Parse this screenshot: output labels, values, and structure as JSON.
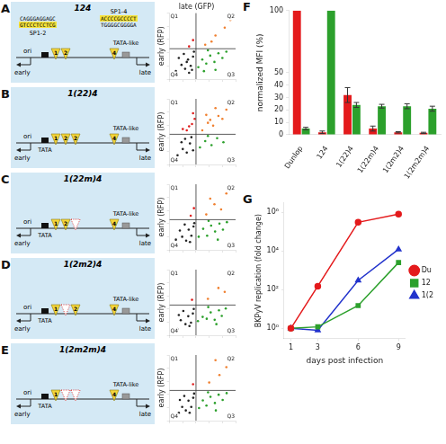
{
  "figure": {
    "diagrams": [
      {
        "panel": "A",
        "title": "124",
        "sequences": [
          {
            "top": "CAGGGAGGAGC",
            "bottom": "GTCCCTCCTCG",
            "name": "SP1-2"
          },
          {
            "top": "ACCCCGCCCCT",
            "bottom": "TGGGGCGGGGA",
            "name": "SP1-4"
          }
        ],
        "sites": [
          {
            "label": "1"
          },
          {
            "label": "2"
          },
          {
            "label": "4"
          }
        ],
        "ori": "ori",
        "early": "early",
        "late": "late",
        "tata_like": "TATA-like"
      },
      {
        "panel": "B",
        "title": "1(22)4",
        "sites": [
          {
            "label": "1"
          },
          {
            "label": "2"
          },
          {
            "label": "2"
          },
          {
            "label": "4"
          }
        ],
        "ori": "ori",
        "early": "early",
        "late": "late",
        "tata": "TATA",
        "tata_like": "TATA-like"
      },
      {
        "panel": "C",
        "title": "1(22m)4",
        "sites": [
          {
            "label": "1"
          },
          {
            "label": "2"
          },
          {
            "mutated": true
          },
          {
            "label": "4"
          }
        ],
        "ori": "ori",
        "early": "early",
        "late": "late",
        "tata": "TATA",
        "tata_like": "TATA-like"
      },
      {
        "panel": "D",
        "title": "1(2m2)4",
        "sites": [
          {
            "label": "1"
          },
          {
            "mutated": true
          },
          {
            "label": "2"
          },
          {
            "label": "4"
          }
        ],
        "ori": "ori",
        "early": "early",
        "late": "late",
        "tata": "TATA",
        "tata_like": "TATA-like"
      },
      {
        "panel": "E",
        "title": "1(2m2m)4",
        "sites": [
          {
            "label": "1"
          },
          {
            "mutated": true
          },
          {
            "mutated": true
          },
          {
            "label": "4"
          }
        ],
        "ori": "ori",
        "early": "early",
        "late": "late",
        "tata": "TATA",
        "tata_like": "TATA-like"
      }
    ]
  },
  "chart_data": [
    {
      "type": "scatter",
      "x_label": "late (GFP)",
      "y_label": "early (RFP)",
      "log": true,
      "tick_labels": false,
      "xlim": [
        1,
        100000
      ],
      "ylim": [
        1,
        100000
      ],
      "xticks": [
        1,
        10,
        100,
        1000,
        10000,
        100000
      ],
      "yticks": [
        1,
        10,
        100,
        1000,
        10000,
        100000
      ],
      "gates": {
        "x": 100,
        "y": 200
      },
      "quadrants": [
        "Q1",
        "Q2",
        "Q3",
        "Q4"
      ],
      "series": [
        {
          "color": "#222222",
          "points": [
            [
              3,
              4
            ],
            [
              8,
              12
            ],
            [
              15,
              6
            ],
            [
              25,
              30
            ],
            [
              40,
              10
            ],
            [
              60,
              50
            ],
            [
              12,
              80
            ],
            [
              5,
              40
            ],
            [
              30,
              3
            ],
            [
              70,
              120
            ],
            [
              20,
              20
            ],
            [
              50,
              5
            ]
          ]
        },
        {
          "color": "#2ca02c",
          "points": [
            [
              150,
              8
            ],
            [
              300,
              30
            ],
            [
              600,
              15
            ],
            [
              1200,
              60
            ],
            [
              2500,
              20
            ],
            [
              5000,
              90
            ],
            [
              10000,
              40
            ],
            [
              20000,
              120
            ],
            [
              800,
              150
            ],
            [
              400,
              4
            ],
            [
              3000,
              5
            ]
          ]
        },
        {
          "color": "#f08030",
          "points": [
            [
              500,
              400
            ],
            [
              3000,
              2000
            ],
            [
              15000,
              8000
            ],
            [
              40000,
              30000
            ],
            [
              1500,
              700
            ]
          ]
        },
        {
          "color": "#e02020",
          "points": [
            [
              30,
              300
            ],
            [
              60,
              900
            ]
          ]
        }
      ]
    },
    {
      "type": "scatter",
      "y_label": "early (RFP)",
      "log": true,
      "tick_labels": false,
      "xlim": [
        1,
        100000
      ],
      "ylim": [
        1,
        100000
      ],
      "xticks": [
        1,
        10,
        100,
        1000,
        10000,
        100000
      ],
      "yticks": [
        1,
        10,
        100,
        1000,
        10000,
        100000
      ],
      "gates": {
        "x": 100,
        "y": 200
      },
      "quadrants": [
        "Q1",
        "Q2",
        "Q3",
        "Q4"
      ],
      "series": [
        {
          "color": "#222222",
          "points": [
            [
              4,
              5
            ],
            [
              10,
              15
            ],
            [
              20,
              8
            ],
            [
              35,
              40
            ],
            [
              60,
              12
            ],
            [
              15,
              90
            ],
            [
              45,
              120
            ],
            [
              8,
              50
            ]
          ]
        },
        {
          "color": "#2ca02c",
          "points": [
            [
              200,
              20
            ],
            [
              500,
              60
            ],
            [
              1500,
              30
            ],
            [
              4000,
              100
            ],
            [
              12000,
              50
            ],
            [
              800,
              150
            ]
          ]
        },
        {
          "color": "#f08030",
          "points": [
            [
              300,
              400
            ],
            [
              800,
              1500
            ],
            [
              2000,
              900
            ],
            [
              5000,
              5000
            ],
            [
              10000,
              3000
            ],
            [
              20000,
              15000
            ],
            [
              3000,
              20000
            ],
            [
              600,
              6000
            ],
            [
              1200,
              2500
            ],
            [
              40000,
              40000
            ]
          ]
        },
        {
          "color": "#e02020",
          "points": [
            [
              20,
              400
            ],
            [
              50,
              1200
            ],
            [
              80,
              3000
            ],
            [
              30,
              800
            ],
            [
              60,
              8000
            ],
            [
              10,
              500
            ]
          ]
        }
      ]
    },
    {
      "type": "scatter",
      "y_label": "early (RFP)",
      "log": true,
      "tick_labels": false,
      "xlim": [
        1,
        100000
      ],
      "ylim": [
        1,
        100000
      ],
      "xticks": [
        1,
        10,
        100,
        1000,
        10000,
        100000
      ],
      "yticks": [
        1,
        10,
        100,
        1000,
        10000,
        100000
      ],
      "gates": {
        "x": 100,
        "y": 200
      },
      "quadrants": [
        "Q1",
        "Q2",
        "Q3",
        "Q4"
      ],
      "series": [
        {
          "color": "#222222",
          "points": [
            [
              3,
              6
            ],
            [
              9,
              10
            ],
            [
              18,
              5
            ],
            [
              28,
              35
            ],
            [
              45,
              12
            ],
            [
              65,
              60
            ],
            [
              14,
              85
            ],
            [
              6,
              30
            ],
            [
              35,
              4
            ],
            [
              75,
              110
            ]
          ]
        },
        {
          "color": "#2ca02c",
          "points": [
            [
              160,
              10
            ],
            [
              350,
              40
            ],
            [
              700,
              12
            ],
            [
              1400,
              70
            ],
            [
              2800,
              25
            ],
            [
              6000,
              100
            ],
            [
              11000,
              35
            ],
            [
              22000,
              130
            ],
            [
              900,
              160
            ],
            [
              4500,
              6
            ]
          ]
        },
        {
          "color": "#f08030",
          "points": [
            [
              600,
              500
            ],
            [
              2500,
              3000
            ],
            [
              8000,
              1200
            ],
            [
              20000,
              20000
            ],
            [
              1200,
              8000
            ]
          ]
        },
        {
          "color": "#e02020",
          "points": [
            [
              40,
              400
            ],
            [
              70,
              1500
            ]
          ]
        }
      ]
    },
    {
      "type": "scatter",
      "y_label": "early (RFP)",
      "log": true,
      "tick_labels": false,
      "xlim": [
        1,
        100000
      ],
      "ylim": [
        1,
        100000
      ],
      "xticks": [
        1,
        10,
        100,
        1000,
        10000,
        100000
      ],
      "yticks": [
        1,
        10,
        100,
        1000,
        10000,
        100000
      ],
      "gates": {
        "x": 100,
        "y": 200
      },
      "quadrants": [
        "Q1",
        "Q2",
        "Q3",
        "Q4"
      ],
      "series": [
        {
          "color": "#222222",
          "points": [
            [
              4,
              3
            ],
            [
              7,
              14
            ],
            [
              16,
              7
            ],
            [
              26,
              28
            ],
            [
              42,
              9
            ],
            [
              58,
              45
            ],
            [
              11,
              70
            ],
            [
              5,
              35
            ],
            [
              32,
              5
            ],
            [
              68,
              100
            ]
          ]
        },
        {
          "color": "#2ca02c",
          "points": [
            [
              140,
              12
            ],
            [
              320,
              25
            ],
            [
              650,
              18
            ],
            [
              1300,
              55
            ],
            [
              2600,
              15
            ],
            [
              5500,
              80
            ],
            [
              9000,
              30
            ],
            [
              18000,
              110
            ],
            [
              850,
              140
            ],
            [
              3500,
              7
            ]
          ]
        },
        {
          "color": "#f08030",
          "points": [
            [
              800,
              600
            ],
            [
              5000,
              4000
            ],
            [
              15000,
              2000
            ]
          ]
        },
        {
          "color": "#e02020",
          "points": [
            [
              50,
              500
            ]
          ]
        }
      ]
    },
    {
      "type": "scatter",
      "y_label": "early (RFP)",
      "log": true,
      "tick_labels": false,
      "xlim": [
        1,
        100000
      ],
      "ylim": [
        1,
        100000
      ],
      "xticks": [
        1,
        10,
        100,
        1000,
        10000,
        100000
      ],
      "yticks": [
        1,
        10,
        100,
        1000,
        10000,
        100000
      ],
      "gates": {
        "x": 100,
        "y": 200
      },
      "quadrants": [
        "Q1",
        "Q2",
        "Q3",
        "Q4"
      ],
      "series": [
        {
          "color": "#222222",
          "points": [
            [
              5,
              4
            ],
            [
              9,
              11
            ],
            [
              17,
              6
            ],
            [
              27,
              33
            ],
            [
              44,
              11
            ],
            [
              62,
              55
            ],
            [
              13,
              75
            ],
            [
              6,
              38
            ],
            [
              33,
              4
            ],
            [
              72,
              115
            ]
          ]
        },
        {
          "color": "#2ca02c",
          "points": [
            [
              170,
              9
            ],
            [
              330,
              35
            ],
            [
              620,
              14
            ],
            [
              1250,
              65
            ],
            [
              2700,
              22
            ],
            [
              5200,
              95
            ],
            [
              10500,
              38
            ],
            [
              21000,
              125
            ],
            [
              820,
              145
            ],
            [
              3200,
              6
            ]
          ]
        },
        {
          "color": "#f08030",
          "points": [
            [
              1000,
              800
            ],
            [
              6000,
              3000
            ],
            [
              20000,
              12000
            ],
            [
              3000,
              40000
            ]
          ]
        },
        {
          "color": "#e02020",
          "points": [
            [
              60,
              600
            ]
          ]
        }
      ]
    },
    {
      "type": "bar",
      "panel": "F",
      "y_label": "normalized MFI (%)",
      "grid": false,
      "categories": [
        "Dunlop",
        "124",
        "1(22)4",
        "1(22m)4",
        "1(2m2)4",
        "1(2m2m)4"
      ],
      "ylim": [
        0,
        100
      ],
      "yticks": [
        0,
        10,
        20,
        30,
        40,
        50,
        100
      ],
      "series": [
        {
          "color": "#e41a1c",
          "values": [
            100,
            2,
            32,
            5,
            2,
            1.5
          ],
          "errors": [
            0,
            1,
            6,
            2,
            0.5,
            0.5
          ]
        },
        {
          "color": "#2ca02c",
          "values": [
            5,
            100,
            24,
            23,
            23,
            21
          ],
          "errors": [
            1,
            0,
            2,
            1.5,
            2,
            2
          ]
        }
      ]
    },
    {
      "type": "line",
      "panel": "G",
      "x_label": "days post infection",
      "y_label": "BKPyV replication (fold change)",
      "log": "y",
      "grid": false,
      "legend": "right",
      "x": [
        1,
        3,
        6,
        9
      ],
      "xlim": [
        0.5,
        9.5
      ],
      "xticks": [
        1,
        3,
        6,
        9
      ],
      "ylim": [
        0.3,
        3000000
      ],
      "yticks": [
        {
          "value": 1,
          "label": "10⁰"
        },
        {
          "value": 100,
          "label": "10²"
        },
        {
          "value": 10000,
          "label": "10⁴"
        },
        {
          "value": 1000000,
          "label": "10⁶"
        }
      ],
      "series": [
        {
          "name": "Du",
          "color": "#e41a1c",
          "marker": "circle",
          "values": [
            1,
            150,
            300000,
            800000
          ]
        },
        {
          "name": "12",
          "color": "#2ca02c",
          "marker": "square",
          "values": [
            1,
            1.2,
            15,
            2500
          ]
        },
        {
          "name": "1(2",
          "color": "#2233cc",
          "marker": "triangle",
          "values": [
            1,
            0.8,
            300,
            12000
          ]
        }
      ]
    }
  ]
}
